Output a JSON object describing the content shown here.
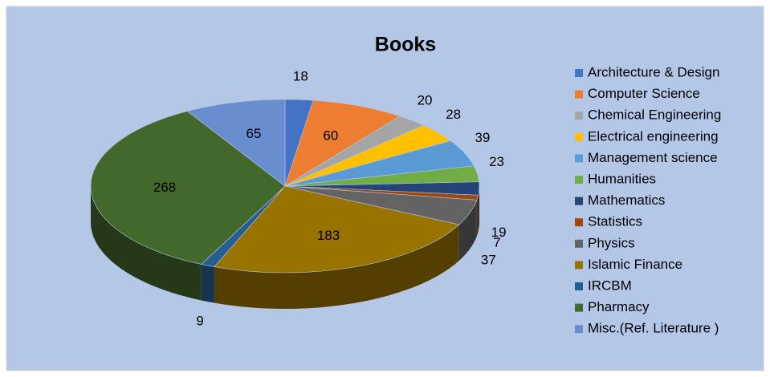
{
  "chart_data": {
    "type": "pie",
    "title": "Books",
    "categories": [
      "Architecture & Design",
      "Computer Science",
      "Chemical Engineering",
      "Electrical engineering",
      "Management science",
      "Humanities",
      "Mathematics",
      "Statistics",
      "Physics",
      "Islamic Finance",
      "IRCBM",
      "Pharmacy",
      "Misc.(Ref. Literature )"
    ],
    "values": [
      18,
      60,
      20,
      28,
      39,
      23,
      19,
      7,
      37,
      183,
      9,
      268,
      65
    ],
    "colors": [
      "#4472c4",
      "#ed7d31",
      "#a5a5a5",
      "#ffc000",
      "#5b9bd5",
      "#70ad47",
      "#264478",
      "#9e480e",
      "#636363",
      "#997300",
      "#255e91",
      "#43682b",
      "#698ed0"
    ],
    "legend": "right"
  }
}
